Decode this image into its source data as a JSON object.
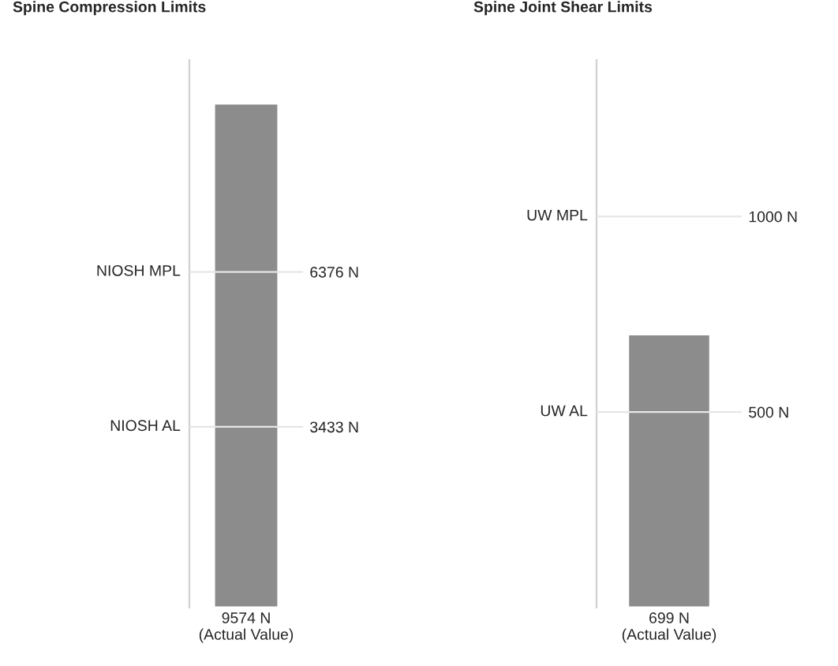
{
  "chart_data": [
    {
      "type": "bar",
      "title": "Spine Compression Limits",
      "categories": [
        null
      ],
      "values": [
        9574
      ],
      "value_labels": [
        "9574 N\n(Actual Value)"
      ],
      "color": "#8c8c8c",
      "ylim": [
        0,
        10400
      ],
      "yticks": [
        {
          "value": 3433,
          "label": "3433 N"
        },
        {
          "value": 6376,
          "label": "6376 N"
        }
      ],
      "ref_lines": [
        {
          "axis": "y",
          "value": 6376,
          "label": "NIOSH MPL",
          "color": "#e6e6e6"
        },
        {
          "axis": "y",
          "value": 3433,
          "label": "NIOSH AL",
          "color": "#e6e6e6"
        }
      ]
    },
    {
      "type": "bar",
      "title": "Spine Joint Shear Limits",
      "categories": [
        null
      ],
      "values": [
        699
      ],
      "value_labels": [
        "699 N\n(Actual Value)"
      ],
      "color": "#8c8c8c",
      "ylim": [
        0,
        1400
      ],
      "yticks": [
        {
          "value": 500,
          "label": "500 N"
        },
        {
          "value": 1000,
          "label": "1000 N"
        }
      ],
      "ref_lines": [
        {
          "axis": "y",
          "value": 1000,
          "label": "UW MPL",
          "color": "#e6e6e6"
        },
        {
          "axis": "y",
          "value": 500,
          "label": "UW AL",
          "color": "#e6e6e6"
        }
      ]
    }
  ]
}
